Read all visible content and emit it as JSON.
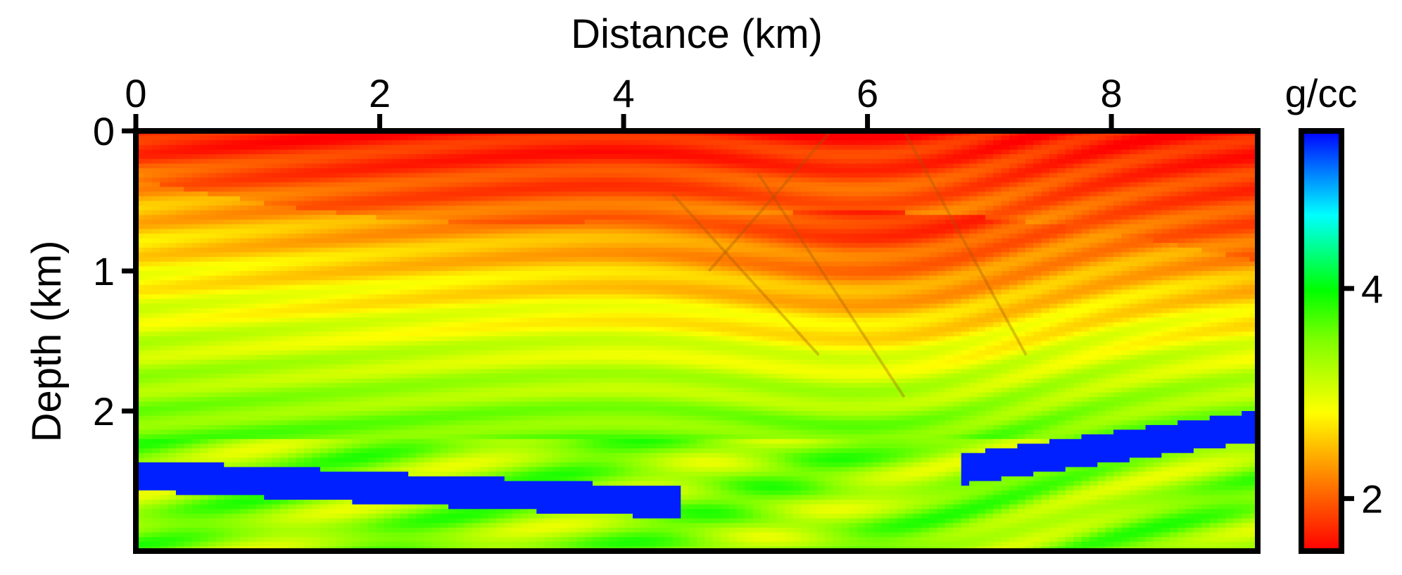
{
  "chart_data": {
    "type": "heatmap",
    "title": "",
    "xlabel": "Distance (km)",
    "ylabel": "Depth (km)",
    "xlim": [
      0,
      9.2
    ],
    "ylim": [
      0,
      3.0
    ],
    "x_ticks": [
      0,
      2,
      4,
      6,
      8
    ],
    "y_ticks": [
      0,
      1,
      2
    ],
    "x_axis_position": "top",
    "y_axis_inverted": true,
    "colorbar": {
      "label": "g/cc",
      "ticks": [
        2,
        4
      ],
      "range": [
        1.5,
        5.5
      ],
      "colors": [
        "#ff0000",
        "#ff8000",
        "#ffff00",
        "#80ff00",
        "#00ff00",
        "#00ffff",
        "#0000ff"
      ],
      "position": "right"
    },
    "interfaces": [
      {
        "name": "salt-like high-density layer (left)",
        "value": 5.5,
        "x": [
          0,
          2,
          4,
          4.5
        ],
        "depth": [
          2.35,
          2.45,
          2.52,
          2.55
        ]
      },
      {
        "name": "salt-like high-density layer (right)",
        "value": 5.5,
        "x": [
          6.8,
          8,
          9.2
        ],
        "depth": [
          2.3,
          2.15,
          2.0
        ]
      }
    ],
    "faults": [
      {
        "x": [
          4.4,
          5.6
        ],
        "depth": [
          0.45,
          1.6
        ]
      },
      {
        "x": [
          5.1,
          6.3
        ],
        "depth": [
          0.3,
          1.9
        ]
      },
      {
        "x": [
          5.7,
          4.7
        ],
        "depth": [
          0.0,
          1.0
        ]
      },
      {
        "x": [
          6.3,
          7.3
        ],
        "depth": [
          0.0,
          1.6
        ]
      }
    ],
    "grid": false,
    "legend": "none"
  },
  "colors": {
    "low": "#ff2a00",
    "mid": "#ffff00",
    "high": "#0000ff",
    "frame": "#000000"
  }
}
